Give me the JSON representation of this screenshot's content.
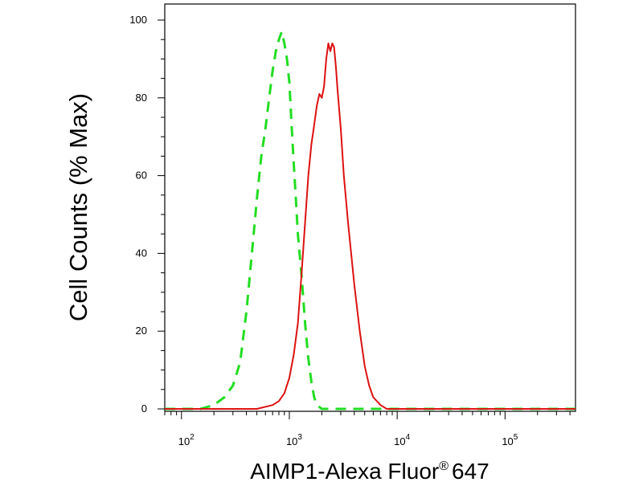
{
  "chart_data": {
    "type": "line",
    "xlabel": "AIMP1-Alexa Fluor",
    "xlabel_superscript": "®",
    "xlabel_suffix": "647",
    "ylabel": "Cell Counts (% Max)",
    "x_scale": "log",
    "xlim": [
      70,
      450000
    ],
    "ylim": [
      0,
      100
    ],
    "x_ticks": [
      {
        "value": 100,
        "base": "10",
        "exp": "2"
      },
      {
        "value": 1000,
        "base": "10",
        "exp": "3"
      },
      {
        "value": 10000,
        "base": "10",
        "exp": "4"
      },
      {
        "value": 100000,
        "base": "10",
        "exp": "5"
      }
    ],
    "y_ticks": [
      0,
      20,
      40,
      60,
      80,
      100
    ],
    "grid": false,
    "legend": "none",
    "series": [
      {
        "color": "#22dd22",
        "style": "dashed",
        "x": [
          70,
          100,
          150,
          200,
          250,
          300,
          350,
          400,
          450,
          500,
          550,
          600,
          650,
          700,
          750,
          800,
          850,
          900,
          950,
          1000,
          1050,
          1100,
          1150,
          1200,
          1300,
          1400,
          1500,
          1600,
          1700,
          1800,
          2000,
          2500,
          5000,
          10000,
          100000,
          450000
        ],
        "y": [
          0,
          0,
          0,
          1,
          3,
          6,
          12,
          25,
          40,
          54,
          65,
          72,
          80,
          87,
          92,
          95,
          97,
          94,
          90,
          84,
          73,
          63,
          54,
          45,
          34,
          22,
          13,
          7,
          3,
          1,
          0,
          0,
          0,
          0,
          0,
          0
        ]
      },
      {
        "color": "#dd1111",
        "style": "solid",
        "x": [
          70,
          500,
          700,
          800,
          900,
          1000,
          1100,
          1200,
          1300,
          1400,
          1500,
          1600,
          1700,
          1800,
          1900,
          2000,
          2100,
          2200,
          2300,
          2400,
          2500,
          2600,
          2700,
          2800,
          3000,
          3200,
          3500,
          4000,
          4500,
          5000,
          5500,
          6000,
          7000,
          8000,
          10000,
          100000,
          450000
        ],
        "y": [
          0,
          0,
          1,
          2,
          4,
          8,
          14,
          22,
          35,
          48,
          60,
          68,
          73,
          78,
          81,
          80,
          83,
          90,
          94,
          92,
          94,
          93,
          88,
          82,
          72,
          60,
          48,
          32,
          20,
          11,
          6,
          3,
          1,
          0,
          0,
          0,
          0
        ]
      }
    ]
  }
}
